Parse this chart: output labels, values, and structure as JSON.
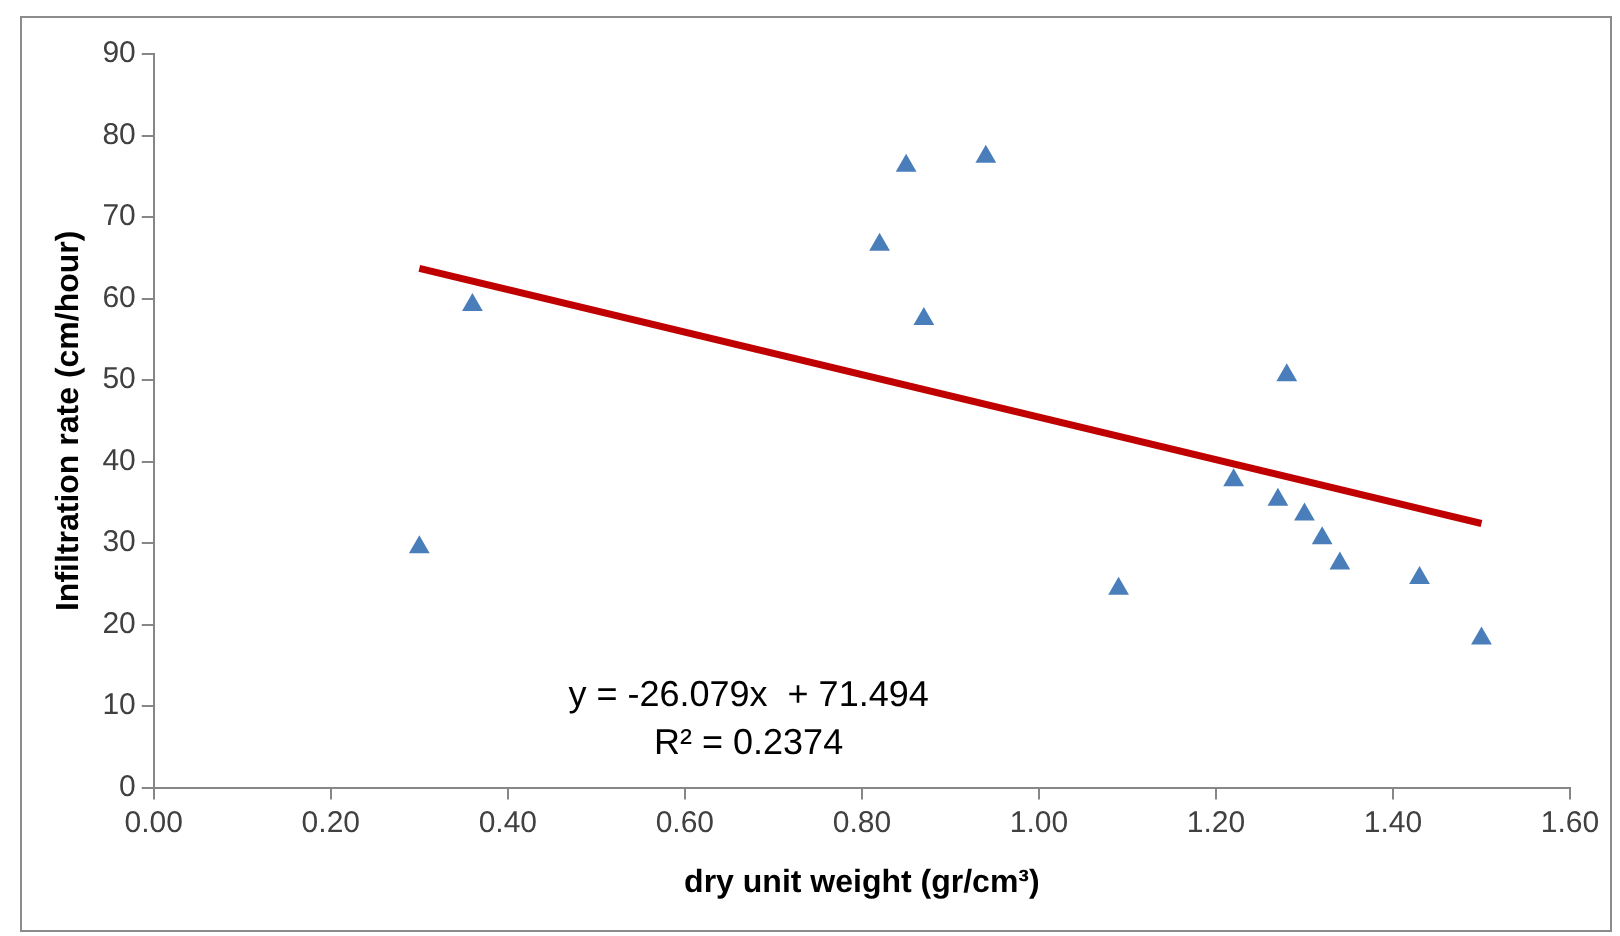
{
  "chart_data": {
    "type": "scatter",
    "xlabel": "dry unit weight (gr/cm³)",
    "ylabel": "Infiltration rate (cm/hour)",
    "xlim": [
      0,
      1.6
    ],
    "xticks": [
      {
        "value": 0,
        "label": "0.00"
      },
      {
        "value": 0.2,
        "label": "0.20"
      },
      {
        "value": 0.4,
        "label": "0.40"
      },
      {
        "value": 0.6,
        "label": "0.60"
      },
      {
        "value": 0.8,
        "label": "0.80"
      },
      {
        "value": 1,
        "label": "1.00"
      },
      {
        "value": 1.2,
        "label": "1.20"
      },
      {
        "value": 1.4,
        "label": "1.40"
      },
      {
        "value": 1.6,
        "label": "1.60"
      }
    ],
    "ylim": [
      0,
      90
    ],
    "yticks": [
      0,
      10,
      20,
      30,
      40,
      50,
      60,
      70,
      80,
      90
    ],
    "grid": false,
    "legend": false,
    "marker": "triangle",
    "series": [
      {
        "color": "#4a7ebb",
        "x": [
          0.3,
          0.36,
          0.82,
          0.85,
          0.87,
          0.94,
          1.09,
          1.22,
          1.27,
          1.28,
          1.3,
          1.32,
          1.34,
          1.43,
          1.5
        ],
        "values": [
          29.5,
          59.2,
          66.6,
          76.3,
          57.5,
          77.4,
          24.4,
          37.7,
          35.3,
          50.6,
          33.5,
          30.6,
          27.5,
          25.7,
          18.3
        ]
      },
      {
        "type": "line",
        "color": "#c00000",
        "line_style": "solid",
        "marker": "none",
        "x": [
          0.3,
          1.5
        ],
        "values": [
          63.7,
          32.4
        ]
      }
    ],
    "annotations": [
      "y = -26.079x  + 71.494",
      "R² = 0.2374"
    ]
  }
}
